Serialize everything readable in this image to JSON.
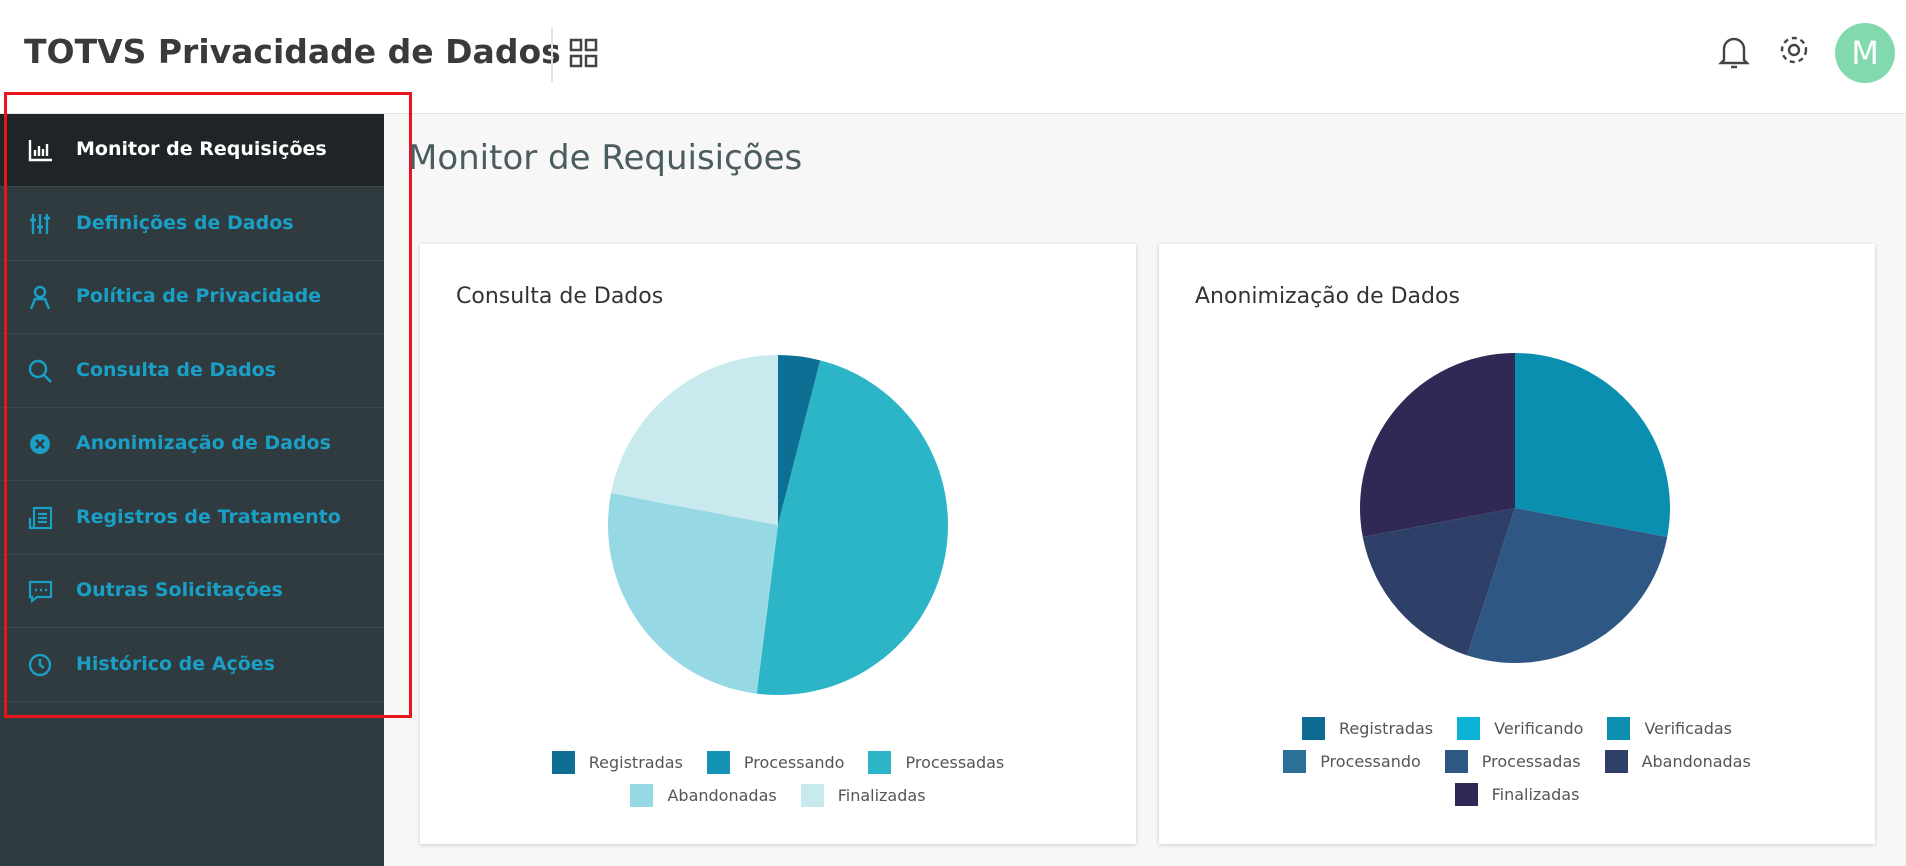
{
  "header": {
    "title": "TOTVS Privacidade de Dados",
    "avatar": "M"
  },
  "nav": {
    "items": [
      "Monitor de Requisições",
      "Definições de Dados",
      "Política de Privacidade",
      "Consulta de Dados",
      "Anonimização de Dados",
      "Registros de Tratamento",
      "Outras Solicitações",
      "Histórico de Ações"
    ]
  },
  "page_title": "Monitor de Requisições",
  "chart_data": [
    {
      "type": "pie",
      "title": "Consulta de Dados",
      "categories": [
        "Registradas",
        "Processando",
        "Processadas",
        "Abandonadas",
        "Finalizadas"
      ],
      "values": [
        4,
        0,
        48,
        26,
        22
      ],
      "colors": [
        "#0f6e94",
        "#1593b5",
        "#2bb5c6",
        "#96d8e3",
        "#c8eaef"
      ]
    },
    {
      "type": "pie",
      "title": "Anonimização de Dados",
      "categories": [
        "Registradas",
        "Verificando",
        "Verificadas",
        "Processando",
        "Processadas",
        "Abandonadas",
        "Finalizadas"
      ],
      "values": [
        0,
        0,
        28,
        0,
        27,
        17,
        28
      ],
      "colors": [
        "#0e6b94",
        "#0ab3d6",
        "#0a8fb0",
        "#2c6f99",
        "#2f5783",
        "#2e3f68",
        "#302955"
      ]
    }
  ]
}
